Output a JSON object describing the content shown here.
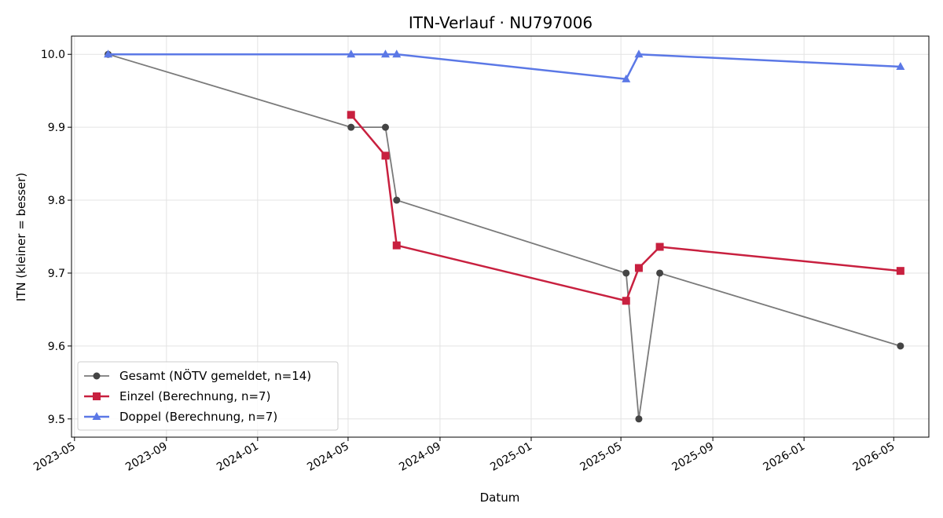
{
  "chart_data": {
    "type": "line",
    "title": "ITN-Verlauf · NU797006",
    "xlabel": "Datum",
    "ylabel": "ITN  (kleiner = besser)",
    "x_ticks": [
      "2023-05",
      "2023-09",
      "2024-01",
      "2024-05",
      "2024-09",
      "2025-01",
      "2025-05",
      "2025-09",
      "2026-01",
      "2026-05"
    ],
    "y_ticks": [
      "9.5",
      "9.6",
      "9.7",
      "9.8",
      "9.9",
      "10.0"
    ],
    "xlim": [
      "2023-04-27",
      "2026-06-17"
    ],
    "ylim": [
      9.475,
      10.025
    ],
    "grid": true,
    "legend_position": "lower-left",
    "series": [
      {
        "name": "Gesamt (NÖTV gemeldet, n=14)",
        "color": "#7a7a7a",
        "marker_color": "#444444",
        "marker": "circle",
        "points": [
          {
            "x": "2023-06-15",
            "y": 10.0
          },
          {
            "x": "2024-05-05",
            "y": 9.9
          },
          {
            "x": "2024-06-20",
            "y": 9.9
          },
          {
            "x": "2024-07-05",
            "y": 9.8
          },
          {
            "x": "2025-05-08",
            "y": 9.7
          },
          {
            "x": "2025-05-25",
            "y": 9.5
          },
          {
            "x": "2025-06-22",
            "y": 9.7
          },
          {
            "x": "2026-05-10",
            "y": 9.6
          }
        ]
      },
      {
        "name": "Einzel (Berechnung, n=7)",
        "color": "#c8203f",
        "marker_color": "#c8203f",
        "marker": "square",
        "points": [
          {
            "x": "2024-05-05",
            "y": 9.917
          },
          {
            "x": "2024-06-20",
            "y": 9.861
          },
          {
            "x": "2024-07-05",
            "y": 9.738
          },
          {
            "x": "2025-05-08",
            "y": 9.662
          },
          {
            "x": "2025-05-25",
            "y": 9.707
          },
          {
            "x": "2025-06-22",
            "y": 9.736
          },
          {
            "x": "2026-05-10",
            "y": 9.703
          }
        ]
      },
      {
        "name": "Doppel (Berechnung, n=7)",
        "color": "#5b78e6",
        "marker_color": "#5b78e6",
        "marker": "triangle",
        "points": [
          {
            "x": "2023-06-15",
            "y": 10.0
          },
          {
            "x": "2024-05-05",
            "y": 10.0
          },
          {
            "x": "2024-06-20",
            "y": 10.0
          },
          {
            "x": "2024-07-05",
            "y": 10.0
          },
          {
            "x": "2025-05-08",
            "y": 9.966
          },
          {
            "x": "2025-05-25",
            "y": 10.0
          },
          {
            "x": "2026-05-10",
            "y": 9.983
          }
        ]
      }
    ]
  }
}
